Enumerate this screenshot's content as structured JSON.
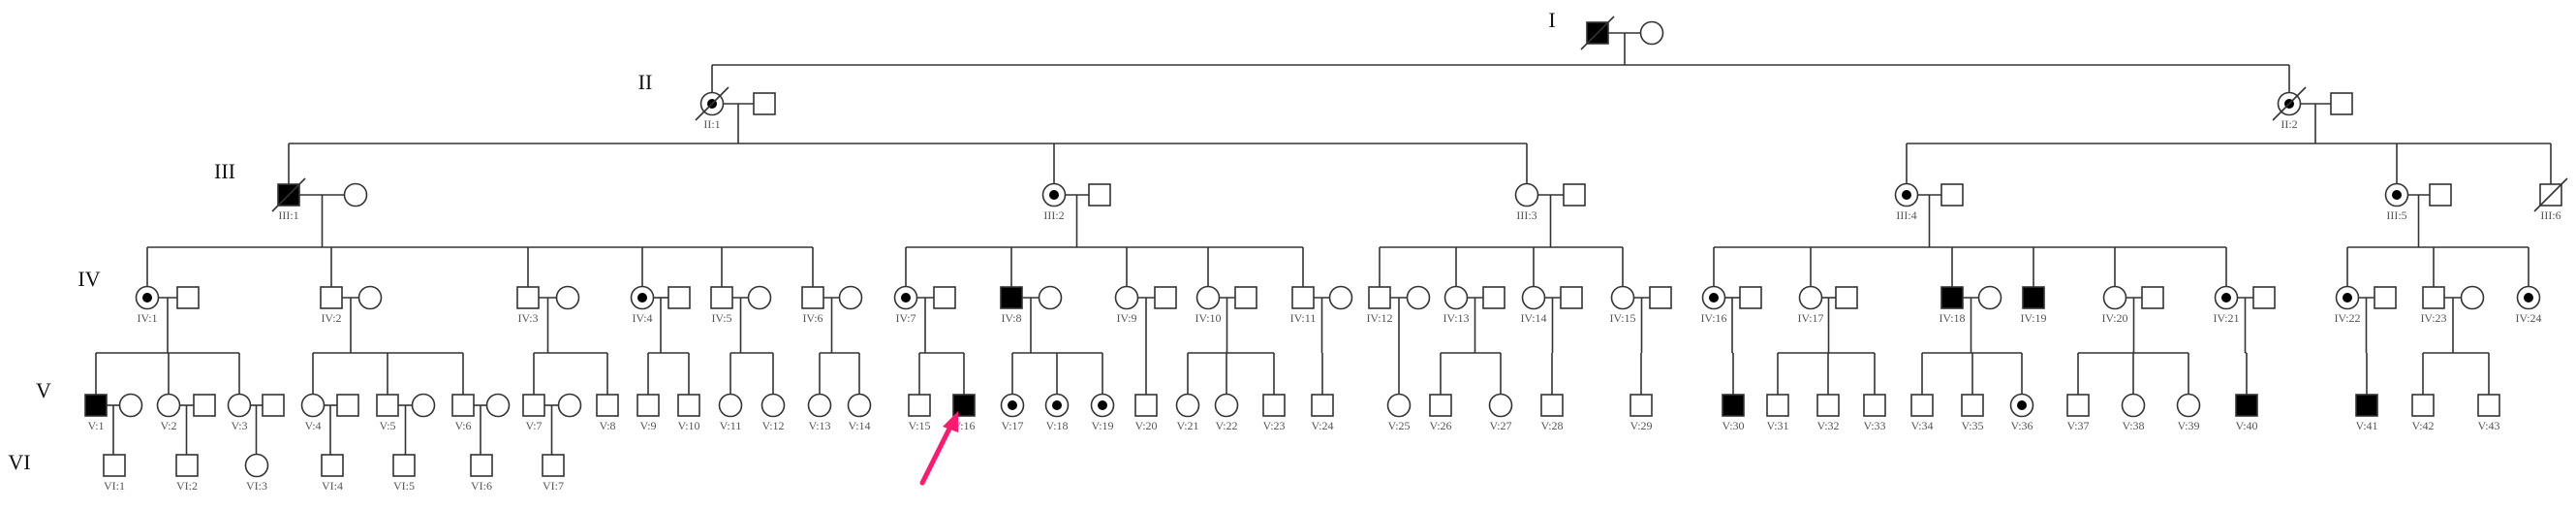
{
  "legend_colors": {
    "line": "#333333",
    "affected": "#000000",
    "arrow": "#ff1a6e"
  },
  "status_values": [
    "affected",
    "carrier",
    "unaffected"
  ],
  "generations": [
    {
      "label": "I",
      "members": [
        {
          "label": "",
          "sex": "M",
          "status": "affected",
          "deceased": true
        },
        {
          "label": "",
          "sex": "F",
          "status": "unaffected"
        }
      ]
    },
    {
      "label": "II",
      "members": [
        {
          "label": "II:1",
          "sex": "F",
          "status": "carrier",
          "deceased": true
        },
        {
          "label": "",
          "sex": "M",
          "status": "unaffected"
        },
        {
          "label": "II:2",
          "sex": "F",
          "status": "carrier",
          "deceased": true
        },
        {
          "label": "",
          "sex": "M",
          "status": "unaffected"
        }
      ]
    },
    {
      "label": "III",
      "members": [
        {
          "label": "III:1",
          "sex": "M",
          "status": "affected",
          "deceased": true
        },
        {
          "label": "",
          "sex": "F",
          "status": "unaffected"
        },
        {
          "label": "III:2",
          "sex": "F",
          "status": "carrier"
        },
        {
          "label": "",
          "sex": "M",
          "status": "unaffected"
        },
        {
          "label": "III:3",
          "sex": "F",
          "status": "unaffected"
        },
        {
          "label": "",
          "sex": "M",
          "status": "unaffected"
        },
        {
          "label": "III:4",
          "sex": "F",
          "status": "carrier"
        },
        {
          "label": "",
          "sex": "M",
          "status": "unaffected"
        },
        {
          "label": "III:5",
          "sex": "F",
          "status": "carrier"
        },
        {
          "label": "",
          "sex": "M",
          "status": "unaffected"
        },
        {
          "label": "III:6",
          "sex": "M",
          "status": "unaffected",
          "deceased": true
        }
      ]
    },
    {
      "label": "IV",
      "members": [
        {
          "label": "IV:1",
          "sex": "F",
          "status": "carrier"
        },
        {
          "label": "",
          "sex": "M",
          "status": "unaffected"
        },
        {
          "label": "IV:2",
          "sex": "M",
          "status": "unaffected"
        },
        {
          "label": "",
          "sex": "F",
          "status": "unaffected"
        },
        {
          "label": "IV:3",
          "sex": "M",
          "status": "unaffected"
        },
        {
          "label": "",
          "sex": "F",
          "status": "unaffected"
        },
        {
          "label": "IV:4",
          "sex": "F",
          "status": "carrier"
        },
        {
          "label": "",
          "sex": "M",
          "status": "unaffected"
        },
        {
          "label": "IV:5",
          "sex": "M",
          "status": "unaffected"
        },
        {
          "label": "",
          "sex": "F",
          "status": "unaffected"
        },
        {
          "label": "IV:6",
          "sex": "M",
          "status": "unaffected"
        },
        {
          "label": "",
          "sex": "F",
          "status": "unaffected"
        },
        {
          "label": "IV:7",
          "sex": "F",
          "status": "carrier"
        },
        {
          "label": "",
          "sex": "M",
          "status": "unaffected"
        },
        {
          "label": "IV:8",
          "sex": "M",
          "status": "affected"
        },
        {
          "label": "",
          "sex": "F",
          "status": "unaffected"
        },
        {
          "label": "IV:9",
          "sex": "F",
          "status": "unaffected"
        },
        {
          "label": "",
          "sex": "M",
          "status": "unaffected"
        },
        {
          "label": "IV:10",
          "sex": "F",
          "status": "unaffected"
        },
        {
          "label": "",
          "sex": "M",
          "status": "unaffected"
        },
        {
          "label": "IV:11",
          "sex": "M",
          "status": "unaffected"
        },
        {
          "label": "",
          "sex": "F",
          "status": "unaffected"
        },
        {
          "label": "IV:12",
          "sex": "M",
          "status": "unaffected"
        },
        {
          "label": "",
          "sex": "F",
          "status": "unaffected"
        },
        {
          "label": "IV:13",
          "sex": "F",
          "status": "unaffected"
        },
        {
          "label": "",
          "sex": "M",
          "status": "unaffected"
        },
        {
          "label": "IV:14",
          "sex": "F",
          "status": "unaffected"
        },
        {
          "label": "",
          "sex": "M",
          "status": "unaffected"
        },
        {
          "label": "IV:15",
          "sex": "F",
          "status": "unaffected"
        },
        {
          "label": "",
          "sex": "M",
          "status": "unaffected"
        },
        {
          "label": "IV:16",
          "sex": "F",
          "status": "carrier"
        },
        {
          "label": "",
          "sex": "M",
          "status": "unaffected"
        },
        {
          "label": "IV:17",
          "sex": "F",
          "status": "unaffected"
        },
        {
          "label": "",
          "sex": "M",
          "status": "unaffected"
        },
        {
          "label": "IV:18",
          "sex": "M",
          "status": "affected"
        },
        {
          "label": "",
          "sex": "F",
          "status": "unaffected"
        },
        {
          "label": "IV:19",
          "sex": "M",
          "status": "affected"
        },
        {
          "label": "IV:20",
          "sex": "F",
          "status": "unaffected"
        },
        {
          "label": "",
          "sex": "M",
          "status": "unaffected"
        },
        {
          "label": "IV:21",
          "sex": "F",
          "status": "carrier"
        },
        {
          "label": "",
          "sex": "M",
          "status": "unaffected"
        },
        {
          "label": "IV:22",
          "sex": "F",
          "status": "carrier"
        },
        {
          "label": "",
          "sex": "M",
          "status": "unaffected"
        },
        {
          "label": "IV:23",
          "sex": "M",
          "status": "unaffected"
        },
        {
          "label": "",
          "sex": "F",
          "status": "unaffected"
        },
        {
          "label": "IV:24",
          "sex": "F",
          "status": "carrier"
        }
      ]
    },
    {
      "label": "V",
      "members": [
        {
          "label": "V:1",
          "sex": "M",
          "status": "affected"
        },
        {
          "label": "",
          "sex": "F",
          "status": "unaffected"
        },
        {
          "label": "V:2",
          "sex": "F",
          "status": "unaffected"
        },
        {
          "label": "",
          "sex": "M",
          "status": "unaffected"
        },
        {
          "label": "V:3",
          "sex": "F",
          "status": "unaffected"
        },
        {
          "label": "",
          "sex": "M",
          "status": "unaffected"
        },
        {
          "label": "V:4",
          "sex": "F",
          "status": "unaffected"
        },
        {
          "label": "",
          "sex": "M",
          "status": "unaffected"
        },
        {
          "label": "V:5",
          "sex": "M",
          "status": "unaffected"
        },
        {
          "label": "",
          "sex": "F",
          "status": "unaffected"
        },
        {
          "label": "V:6",
          "sex": "M",
          "status": "unaffected"
        },
        {
          "label": "",
          "sex": "F",
          "status": "unaffected"
        },
        {
          "label": "V:7",
          "sex": "M",
          "status": "unaffected"
        },
        {
          "label": "",
          "sex": "F",
          "status": "unaffected"
        },
        {
          "label": "V:8",
          "sex": "M",
          "status": "unaffected"
        },
        {
          "label": "V:9",
          "sex": "M",
          "status": "unaffected"
        },
        {
          "label": "V:10",
          "sex": "M",
          "status": "unaffected"
        },
        {
          "label": "V:11",
          "sex": "F",
          "status": "unaffected"
        },
        {
          "label": "V:12",
          "sex": "F",
          "status": "unaffected"
        },
        {
          "label": "V:13",
          "sex": "F",
          "status": "unaffected"
        },
        {
          "label": "V:14",
          "sex": "F",
          "status": "unaffected"
        },
        {
          "label": "V:15",
          "sex": "M",
          "status": "unaffected"
        },
        {
          "label": "V:16",
          "sex": "M",
          "status": "affected",
          "proband": true
        },
        {
          "label": "V:17",
          "sex": "F",
          "status": "carrier"
        },
        {
          "label": "V:18",
          "sex": "F",
          "status": "carrier"
        },
        {
          "label": "V:19",
          "sex": "F",
          "status": "carrier"
        },
        {
          "label": "V:20",
          "sex": "M",
          "status": "unaffected"
        },
        {
          "label": "V:21",
          "sex": "F",
          "status": "unaffected"
        },
        {
          "label": "V:22",
          "sex": "F",
          "status": "unaffected"
        },
        {
          "label": "V:23",
          "sex": "M",
          "status": "unaffected"
        },
        {
          "label": "V:24",
          "sex": "M",
          "status": "unaffected"
        },
        {
          "label": "V:25",
          "sex": "F",
          "status": "unaffected"
        },
        {
          "label": "V:26",
          "sex": "M",
          "status": "unaffected"
        },
        {
          "label": "V:27",
          "sex": "F",
          "status": "unaffected"
        },
        {
          "label": "V:28",
          "sex": "M",
          "status": "unaffected"
        },
        {
          "label": "V:29",
          "sex": "M",
          "status": "unaffected"
        },
        {
          "label": "V:30",
          "sex": "M",
          "status": "affected"
        },
        {
          "label": "V:31",
          "sex": "M",
          "status": "unaffected"
        },
        {
          "label": "V:32",
          "sex": "M",
          "status": "unaffected"
        },
        {
          "label": "V:33",
          "sex": "M",
          "status": "unaffected"
        },
        {
          "label": "V:34",
          "sex": "M",
          "status": "unaffected"
        },
        {
          "label": "V:35",
          "sex": "M",
          "status": "unaffected"
        },
        {
          "label": "V:36",
          "sex": "F",
          "status": "carrier"
        },
        {
          "label": "V:37",
          "sex": "M",
          "status": "unaffected"
        },
        {
          "label": "V:38",
          "sex": "F",
          "status": "unaffected"
        },
        {
          "label": "V:39",
          "sex": "F",
          "status": "unaffected"
        },
        {
          "label": "V:40",
          "sex": "M",
          "status": "affected"
        },
        {
          "label": "V:41",
          "sex": "M",
          "status": "affected"
        },
        {
          "label": "V:42",
          "sex": "M",
          "status": "unaffected"
        },
        {
          "label": "V:43",
          "sex": "M",
          "status": "unaffected"
        }
      ]
    },
    {
      "label": "VI",
      "members": [
        {
          "label": "VI:1",
          "sex": "M",
          "status": "unaffected"
        },
        {
          "label": "VI:2",
          "sex": "M",
          "status": "unaffected"
        },
        {
          "label": "VI:3",
          "sex": "F",
          "status": "unaffected"
        },
        {
          "label": "VI:4",
          "sex": "M",
          "status": "unaffected"
        },
        {
          "label": "VI:5",
          "sex": "M",
          "status": "unaffected"
        },
        {
          "label": "VI:6",
          "sex": "M",
          "status": "unaffected"
        },
        {
          "label": "VI:7",
          "sex": "M",
          "status": "unaffected"
        }
      ]
    }
  ],
  "families": [
    {
      "parents": [
        0,
        1
      ],
      "children": [
        2,
        4
      ]
    },
    {
      "parents": [
        2,
        3
      ],
      "children": [
        6,
        8,
        10
      ]
    },
    {
      "parents": [
        4,
        5
      ],
      "children": [
        12,
        14,
        16
      ]
    },
    {
      "parents": [
        6,
        7
      ],
      "children": [
        17,
        19,
        21,
        23,
        25,
        27
      ]
    },
    {
      "parents": [
        8,
        9
      ],
      "children": [
        29,
        31,
        33,
        35,
        37
      ]
    },
    {
      "parents": [
        10,
        11
      ],
      "children": [
        39,
        41,
        43,
        45
      ]
    },
    {
      "parents": [
        12,
        13
      ],
      "children": [
        47,
        49,
        51,
        53,
        54,
        56
      ]
    },
    {
      "parents": [
        14,
        15
      ],
      "children": [
        58,
        60,
        62
      ]
    },
    {
      "parents": [
        17,
        18
      ],
      "children": [
        63,
        65,
        67
      ]
    },
    {
      "parents": [
        19,
        20
      ],
      "children": [
        69,
        71,
        73
      ]
    },
    {
      "parents": [
        21,
        22
      ],
      "children": [
        75,
        77
      ]
    },
    {
      "parents": [
        23,
        24
      ],
      "children": [
        78,
        79
      ]
    },
    {
      "parents": [
        25,
        26
      ],
      "children": [
        80,
        81
      ]
    },
    {
      "parents": [
        27,
        28
      ],
      "children": [
        82,
        83
      ]
    },
    {
      "parents": [
        29,
        30
      ],
      "children": [
        84,
        85
      ]
    },
    {
      "parents": [
        31,
        32
      ],
      "children": [
        86,
        87,
        88
      ]
    },
    {
      "parents": [
        33,
        34
      ],
      "children": [
        89
      ]
    },
    {
      "parents": [
        35,
        36
      ],
      "children": [
        90,
        91,
        92
      ]
    },
    {
      "parents": [
        37,
        38
      ],
      "children": [
        93
      ]
    },
    {
      "parents": [
        39,
        40
      ],
      "children": [
        94
      ]
    },
    {
      "parents": [
        41,
        42
      ],
      "children": [
        95,
        96
      ]
    },
    {
      "parents": [
        43,
        44
      ],
      "children": [
        97
      ]
    },
    {
      "parents": [
        45,
        46
      ],
      "children": [
        98
      ]
    },
    {
      "parents": [
        47,
        48
      ],
      "children": [
        99
      ]
    },
    {
      "parents": [
        49,
        50
      ],
      "children": [
        100,
        101,
        102
      ]
    },
    {
      "parents": [
        51,
        52
      ],
      "children": [
        103,
        104,
        105
      ]
    },
    {
      "parents": [
        54,
        55
      ],
      "children": [
        106,
        107,
        108
      ]
    },
    {
      "parents": [
        56,
        57
      ],
      "children": [
        109
      ]
    },
    {
      "parents": [
        58,
        59
      ],
      "children": [
        110
      ]
    },
    {
      "parents": [
        60,
        61
      ],
      "children": [
        111,
        112
      ]
    },
    {
      "parents": [
        63,
        64
      ],
      "children": [
        113
      ]
    },
    {
      "parents": [
        65,
        66
      ],
      "children": [
        114
      ]
    },
    {
      "parents": [
        67,
        68
      ],
      "children": [
        115
      ]
    },
    {
      "parents": [
        69,
        70
      ],
      "children": [
        116
      ]
    },
    {
      "parents": [
        71,
        72
      ],
      "children": [
        117
      ]
    },
    {
      "parents": [
        73,
        74
      ],
      "children": [
        118
      ]
    },
    {
      "parents": [
        75,
        76
      ],
      "children": [
        119
      ]
    }
  ]
}
